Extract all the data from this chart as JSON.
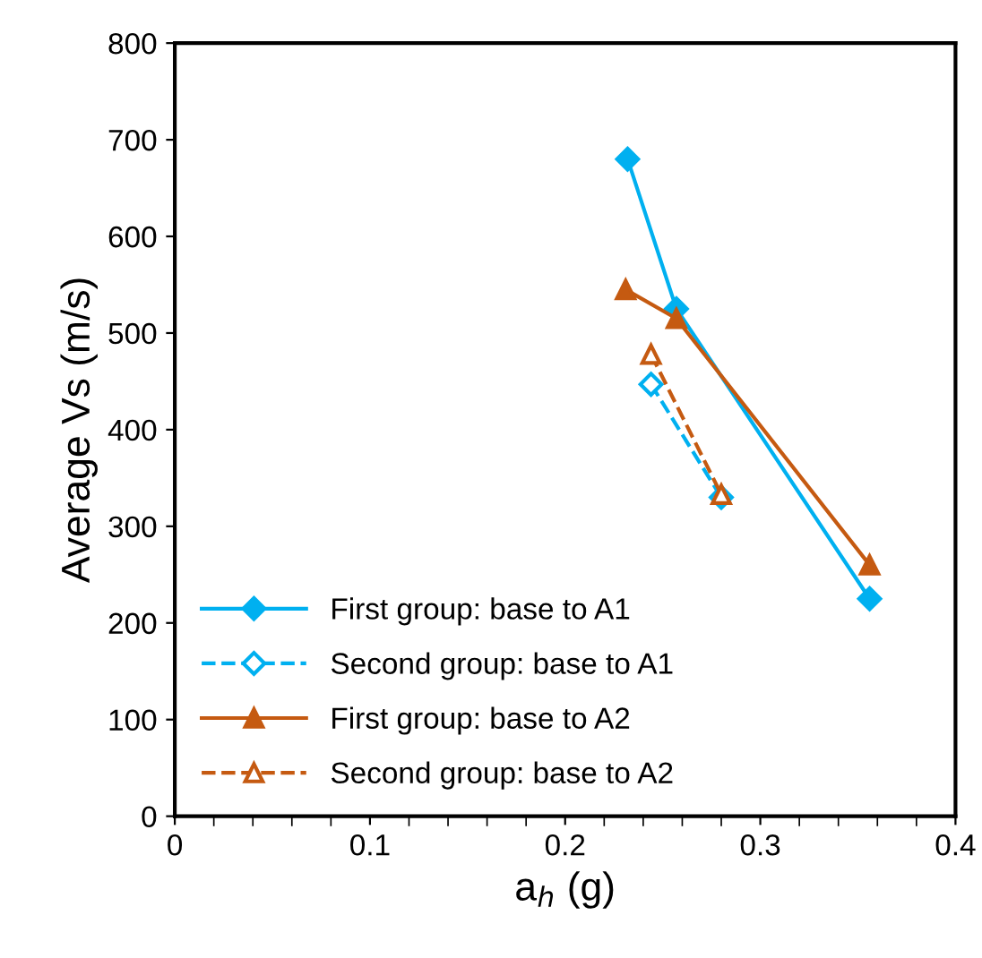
{
  "chart_data": {
    "type": "line",
    "xlabel": "a$_{h}$ (g)",
    "ylabel": "Average Vs (m/s)",
    "xlim": [
      0,
      0.4
    ],
    "xticks": [
      0,
      0.1,
      0.2,
      0.3,
      0.4
    ],
    "ylim": [
      0,
      800
    ],
    "yticks": [
      0,
      100,
      200,
      300,
      400,
      500,
      600,
      700,
      800
    ],
    "grid": false,
    "legend": "bottom left",
    "series": [
      {
        "name": "First group: base to A1",
        "color": "#00b0f0",
        "x": [
          0.232,
          0.257,
          0.356
        ],
        "values": [
          680,
          525,
          225
        ],
        "marker": "diamond",
        "line_style": "solid"
      },
      {
        "name": "Second group: base to A1",
        "color": "#00b0f0",
        "x": [
          0.244,
          0.28
        ],
        "values": [
          447,
          330
        ],
        "marker": "diamond",
        "line_style": "dashed"
      },
      {
        "name": "First group: base to A2",
        "color": "#c55a11",
        "x": [
          0.231,
          0.257,
          0.356
        ],
        "values": [
          545,
          515,
          260
        ],
        "marker": "triangle",
        "line_style": "solid"
      },
      {
        "name": "Second group: base to A2",
        "color": "#c55a11",
        "x": [
          0.244,
          0.28
        ],
        "values": [
          478,
          333
        ],
        "marker": "triangle",
        "line_style": "dashed"
      }
    ]
  }
}
